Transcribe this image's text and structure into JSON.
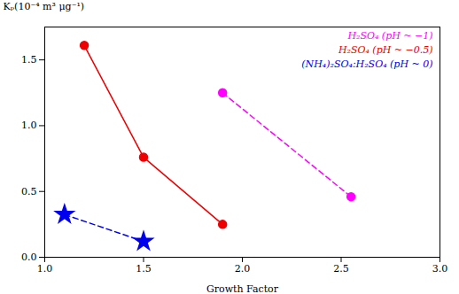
{
  "chart_data": {
    "type": "line",
    "xlabel": "Growth Factor",
    "ylabel": "Kₚ(10⁻⁴ m³ μg⁻¹)",
    "xlim": [
      1.0,
      3.0
    ],
    "ylim": [
      0.0,
      1.75
    ],
    "xticks": [
      {
        "value": 1.0,
        "label": "1.0"
      },
      1.5,
      {
        "value": 2.0,
        "label": "2.0"
      },
      2.5,
      {
        "value": 3.0,
        "label": "3.0"
      }
    ],
    "yticks": [
      {
        "value": 0.0,
        "label": "0.0"
      },
      0.5,
      {
        "value": 1.0,
        "label": "1.0"
      },
      1.5
    ],
    "grid": false,
    "legend": "upper right",
    "series": [
      {
        "name": "H₂SO₄ (pH ~ −1)",
        "color": "#FF00FF",
        "marker": "circle",
        "line_style": "dashed",
        "x": [
          1.9,
          2.55
        ],
        "values": [
          1.25,
          0.46
        ]
      },
      {
        "name": "H₂SO₄ (pH ~ −0.5)",
        "color": "#EE0000",
        "marker": "circle",
        "line_style": "solid",
        "x": [
          1.2,
          1.5,
          1.9
        ],
        "values": [
          1.61,
          0.76,
          0.25
        ]
      },
      {
        "name": "(NH₄)₂SO₄:H₂SO₄ (pH ~ 0)",
        "color": "#0000EE",
        "marker": "star",
        "line_style": "dashed",
        "x": [
          1.1,
          1.5
        ],
        "values": [
          0.325,
          0.12
        ]
      }
    ]
  }
}
